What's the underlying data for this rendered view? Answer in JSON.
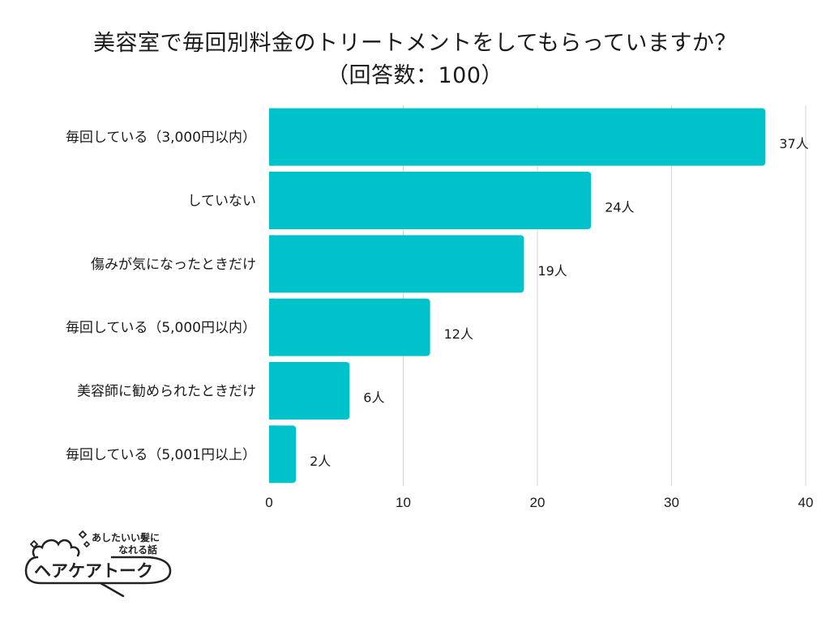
{
  "title": {
    "line1": "美容室で毎回別料金のトリートメントをしてもらっていますか？",
    "line2": "（回答数：100）"
  },
  "chart_data": {
    "type": "bar",
    "orientation": "horizontal",
    "title": "美容室で毎回別料金のトリートメントをしてもらっていますか？（回答数：100）",
    "categories": [
      "毎回している（3,000円以内）",
      "していない",
      "傷みが気になったときだけ",
      "毎回している（5,000円以内）",
      "美容師に勧められたときだけ",
      "毎回している（5,001円以上）"
    ],
    "values": [
      37,
      24,
      19,
      12,
      6,
      2
    ],
    "value_suffix": "人",
    "xlim": [
      0,
      40
    ],
    "xticks": [
      0,
      10,
      20,
      30,
      40
    ],
    "grid": true,
    "bar_color": "#00c2cb"
  },
  "logo": {
    "tagline_line1": "あしたいい髪に",
    "tagline_line2": "なれる話",
    "name": "ヘアケアトーク"
  }
}
